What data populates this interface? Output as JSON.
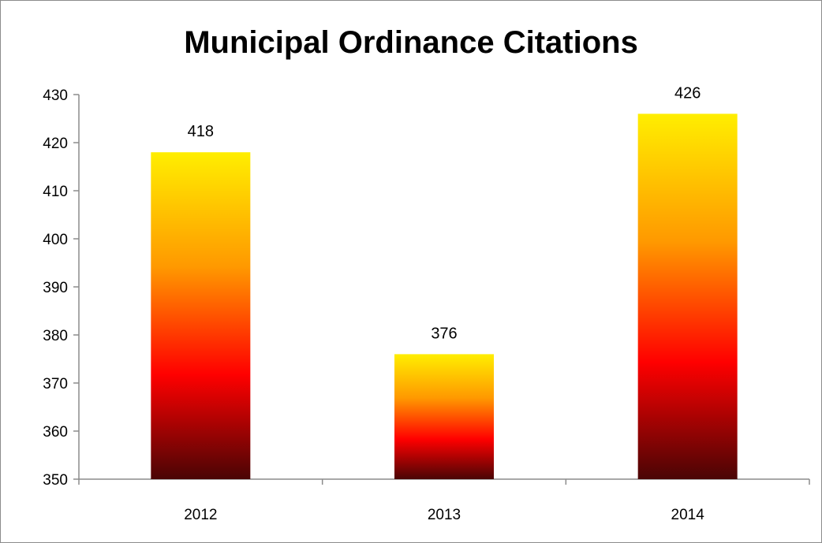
{
  "chart_data": {
    "type": "bar",
    "title": "Municipal Ordinance Citations",
    "categories": [
      "2012",
      "2013",
      "2014"
    ],
    "values": [
      418,
      376,
      426
    ],
    "data_labels": [
      "418",
      "376",
      "426"
    ],
    "ylim": [
      350,
      430
    ],
    "yticks": [
      "350",
      "360",
      "370",
      "380",
      "390",
      "400",
      "410",
      "420",
      "430"
    ],
    "grid": false,
    "legend": "none",
    "colors": {
      "bar_top": "#ffee00",
      "bar_mid_orange": "#ff9900",
      "bar_mid_red": "#ff0000",
      "bar_bottom": "#4a0505",
      "axis": "#8c8c8c"
    }
  }
}
